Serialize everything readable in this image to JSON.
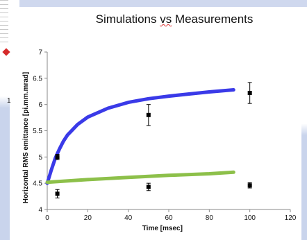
{
  "title_parts": [
    "Simulations ",
    "vs",
    " Measurements"
  ],
  "side_label": "1",
  "chart_data": {
    "type": "scatter",
    "title": "Simulations vs Measurements",
    "xlabel": "Time [msec]",
    "ylabel": "Horizontal RMS emittance [pi.mm.mrad]",
    "xlim": [
      0,
      120
    ],
    "ylim": [
      4,
      7
    ],
    "xticks": [
      0,
      20,
      40,
      60,
      80,
      100,
      120
    ],
    "yticks": [
      4,
      4.5,
      5,
      5.5,
      6,
      6.5,
      7
    ],
    "ytick_labels": [
      "4",
      "4.5",
      "5",
      "5.5",
      "6",
      "6.5",
      "7"
    ],
    "grid": false,
    "legend": false,
    "series": [
      {
        "kind": "line",
        "color": "#3a3ae8",
        "x": [
          0,
          2,
          4,
          6,
          8,
          10,
          15,
          20,
          30,
          40,
          50,
          60,
          70,
          80,
          92
        ],
        "y": [
          4.5,
          4.75,
          4.98,
          5.15,
          5.3,
          5.42,
          5.62,
          5.76,
          5.93,
          6.04,
          6.11,
          6.16,
          6.2,
          6.24,
          6.28
        ]
      },
      {
        "kind": "line",
        "color": "#8dc04a",
        "x": [
          0,
          20,
          40,
          60,
          80,
          92
        ],
        "y": [
          4.52,
          4.57,
          4.61,
          4.65,
          4.68,
          4.71
        ]
      },
      {
        "kind": "points",
        "color": "#000000",
        "x": [
          5,
          5,
          50,
          50,
          100,
          100
        ],
        "y": [
          5.0,
          4.3,
          5.8,
          4.43,
          6.22,
          4.46
        ],
        "err": [
          0.05,
          0.08,
          0.2,
          0.07,
          0.2,
          0.05
        ]
      }
    ]
  }
}
